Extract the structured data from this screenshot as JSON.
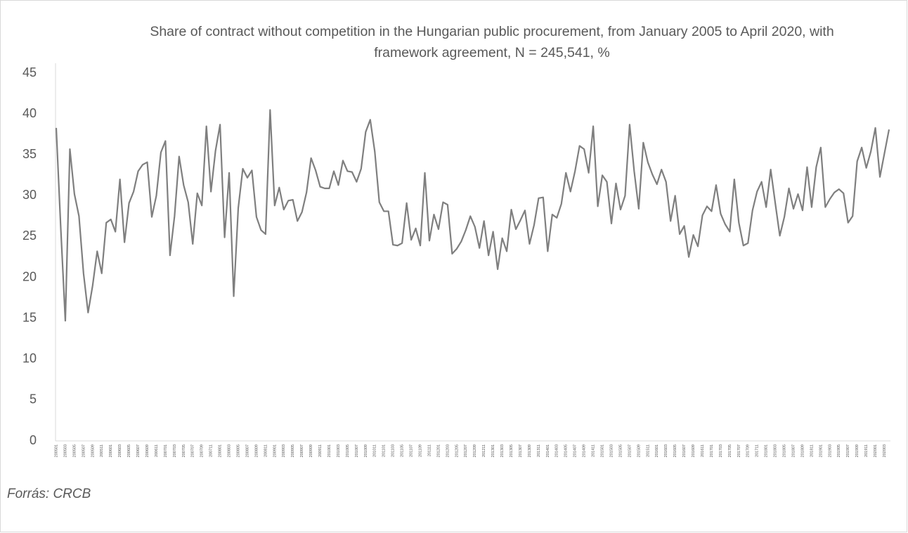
{
  "chart_data": {
    "type": "line",
    "title": "Share of contract without competition in the Hungarian public procurement, from January 2005 to April 2020, with framework agreement, N = 245,541, %",
    "source": "Forrás: CRCB",
    "categories": [
      "200501",
      null,
      "200503",
      null,
      "200505",
      null,
      "200507",
      null,
      "200509",
      null,
      "200511",
      null,
      "200601",
      null,
      "200603",
      null,
      "200605",
      null,
      "200607",
      null,
      "200609",
      null,
      "200611",
      null,
      "200701",
      null,
      "200703",
      null,
      "200705",
      null,
      "200707",
      null,
      "200709",
      null,
      "200711",
      null,
      "200801",
      null,
      "200803",
      null,
      "200805",
      null,
      "200807",
      null,
      "200809",
      null,
      "200811",
      null,
      "200901",
      null,
      "200903",
      null,
      "200905",
      null,
      "200907",
      null,
      "200909",
      null,
      "200911",
      null,
      "201001",
      null,
      "201003",
      null,
      "201005",
      null,
      "201007",
      null,
      "201009",
      null,
      "201011",
      null,
      "201101",
      null,
      "201103",
      null,
      "201105",
      null,
      "201107",
      null,
      "201109",
      null,
      "201111",
      null,
      "201201",
      null,
      "201203",
      null,
      "201205",
      null,
      "201207",
      null,
      "201209",
      null,
      "201211",
      null,
      "201301",
      null,
      "201303",
      null,
      "201305",
      null,
      "201307",
      null,
      "201309",
      null,
      "201311",
      null,
      "201401",
      null,
      "201403",
      null,
      "201405",
      null,
      "201407",
      null,
      "201409",
      null,
      "201411",
      null,
      "201501",
      null,
      "201503",
      null,
      "201505",
      null,
      "201507",
      null,
      "201509",
      null,
      "201511",
      null,
      "201601",
      null,
      "201603",
      null,
      "201605",
      null,
      "201607",
      null,
      "201609",
      null,
      "201611",
      null,
      "201701",
      null,
      "201703",
      null,
      "201705",
      null,
      "201707",
      null,
      "201709",
      null,
      "201711",
      null,
      "201801",
      null,
      "201803",
      null,
      "201805",
      null,
      "201807",
      null,
      "201809",
      null,
      "201811",
      null,
      "201901",
      null,
      "201903",
      null,
      "201905",
      null,
      "201907",
      null,
      "201909",
      null,
      "201911",
      null,
      "202001",
      null,
      "202003",
      null
    ],
    "series": [
      {
        "color": "#7f7f7f",
        "values": [
          38.3,
          26,
          14.7,
          35.7,
          30.2,
          27.5,
          20.5,
          15.7,
          19,
          23.2,
          20.5,
          26.7,
          27.1,
          25.6,
          32,
          24.3,
          29.1,
          30.5,
          33,
          33.8,
          34.1,
          27.4,
          30,
          35.3,
          36.7,
          22.7,
          27.5,
          34.8,
          31.3,
          29.2,
          24.1,
          30.3,
          28.8,
          38.5,
          30.5,
          35.5,
          38.7,
          24.9,
          32.8,
          17.7,
          28.5,
          33.3,
          32.2,
          33.1,
          27.4,
          25.8,
          25.3,
          40.5,
          28.8,
          31,
          28.3,
          29.4,
          29.5,
          26.9,
          28,
          30.4,
          34.6,
          33.1,
          31.1,
          30.9,
          30.9,
          33,
          31.3,
          34.3,
          33,
          32.9,
          31.7,
          33.3,
          37.8,
          39.3,
          35.4,
          29.2,
          28.1,
          28.1,
          24,
          23.9,
          24.2,
          29.1,
          24.6,
          26,
          23.9,
          32.8,
          24.5,
          27.7,
          25.9,
          29.2,
          28.9,
          22.9,
          23.5,
          24.4,
          25.8,
          27.5,
          26.2,
          23.6,
          26.9,
          22.7,
          25.6,
          21,
          24.8,
          23.2,
          28.3,
          25.9,
          27,
          28.2,
          24.1,
          26.4,
          29.7,
          29.8,
          23.2,
          27.7,
          27.3,
          29,
          32.8,
          30.5,
          33,
          36.1,
          35.7,
          32.8,
          38.5,
          28.7,
          32.5,
          31.7,
          26.6,
          31.5,
          28.3,
          30,
          38.7,
          33,
          28.4,
          36.5,
          34.1,
          32.6,
          31.4,
          33.2,
          31.7,
          26.9,
          30,
          25.3,
          26.3,
          22.5,
          25.2,
          23.8,
          27.6,
          28.7,
          28.1,
          31.3,
          27.8,
          26.5,
          25.6,
          32,
          26.7,
          23.9,
          24.2,
          28.2,
          30.5,
          31.7,
          28.6,
          33.2,
          29.1,
          25.1,
          27.4,
          30.9,
          28.4,
          30.2,
          28.2,
          33.5,
          28.6,
          33.5,
          35.9,
          28.6,
          29.6,
          30.4,
          30.8,
          30.3,
          26.7,
          27.5,
          34.2,
          35.9,
          33.4,
          35.4,
          38.3,
          32.3,
          35.2,
          38.1
        ]
      }
    ],
    "ylim": [
      0,
      45
    ],
    "yticks": [
      0,
      5,
      10,
      15,
      20,
      25,
      30,
      35,
      40,
      45
    ],
    "grid": false
  }
}
